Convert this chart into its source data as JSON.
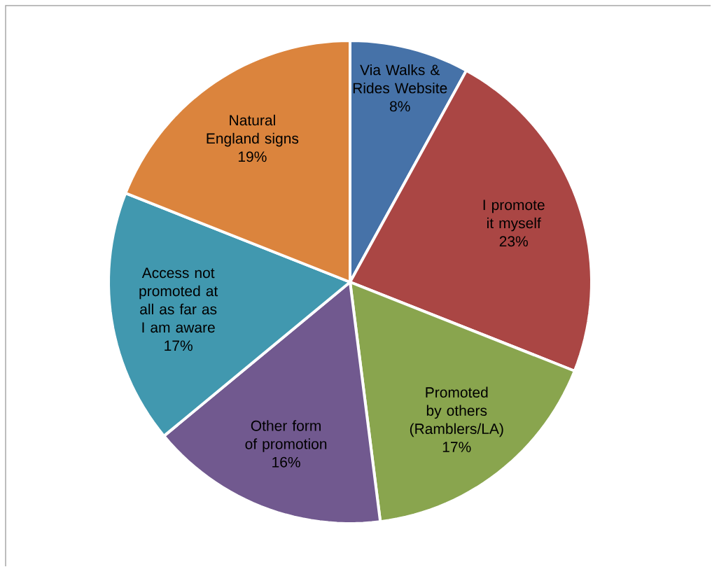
{
  "chart_data": {
    "type": "pie",
    "categories": [
      "Via Walks & Rides Website",
      "I promote it myself",
      "Promoted by others (Ramblers/LA)",
      "Other form of promotion",
      "Access not promoted at all as far as I am aware",
      "Natural England signs"
    ],
    "values": [
      8,
      23,
      17,
      16,
      17,
      19
    ],
    "value_labels": [
      "8%",
      "23%",
      "17%",
      "16%",
      "17%",
      "19%"
    ],
    "colors": [
      "#4672a8",
      "#aa4644",
      "#89a54e",
      "#71598f",
      "#4198af",
      "#db843d"
    ]
  }
}
